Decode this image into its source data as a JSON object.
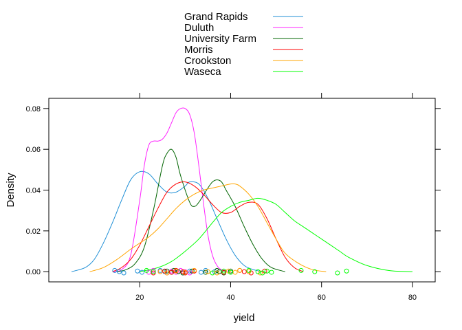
{
  "chart_data": {
    "type": "line",
    "title": "",
    "xlabel": "yield",
    "ylabel": "Density",
    "xlim": [
      0,
      85
    ],
    "ylim": [
      -0.005,
      0.085
    ],
    "x_ticks": [
      20,
      40,
      60,
      80
    ],
    "y_ticks": [
      0.0,
      0.02,
      0.04,
      0.06,
      0.08
    ],
    "x_tick_labels": [
      "20",
      "40",
      "60",
      "80"
    ],
    "y_tick_labels": [
      "0.00",
      "0.02",
      "0.04",
      "0.06",
      "0.08"
    ],
    "grid": false,
    "legend_placement": "top-center",
    "series": [
      {
        "name": "Grand Rapids",
        "color": "#1f8fd6",
        "density": [
          [
            5,
            0.0
          ],
          [
            8,
            0.002
          ],
          [
            10,
            0.006
          ],
          [
            12,
            0.014
          ],
          [
            14,
            0.024
          ],
          [
            16,
            0.035
          ],
          [
            18,
            0.045
          ],
          [
            20,
            0.049
          ],
          [
            22,
            0.048
          ],
          [
            24,
            0.043
          ],
          [
            26,
            0.039
          ],
          [
            28,
            0.039
          ],
          [
            30,
            0.042
          ],
          [
            31,
            0.044
          ],
          [
            33,
            0.043
          ],
          [
            35,
            0.036
          ],
          [
            37,
            0.026
          ],
          [
            39,
            0.016
          ],
          [
            41,
            0.008
          ],
          [
            43,
            0.003
          ],
          [
            45,
            0.001
          ],
          [
            47,
            0.0
          ]
        ],
        "rug": [
          14.5,
          15.5,
          16.5,
          19.5,
          20.5,
          24.5,
          25.5,
          29.5,
          31,
          33.5,
          34.5,
          36.5
        ]
      },
      {
        "name": "Duluth",
        "color": "#ff21ff",
        "density": [
          [
            14,
            0.0
          ],
          [
            16,
            0.001
          ],
          [
            18,
            0.008
          ],
          [
            20,
            0.035
          ],
          [
            21,
            0.052
          ],
          [
            22,
            0.062
          ],
          [
            23,
            0.064
          ],
          [
            24,
            0.064
          ],
          [
            25,
            0.065
          ],
          [
            26,
            0.068
          ],
          [
            27,
            0.073
          ],
          [
            28,
            0.078
          ],
          [
            29,
            0.08
          ],
          [
            30,
            0.08
          ],
          [
            31,
            0.077
          ],
          [
            32,
            0.068
          ],
          [
            33,
            0.052
          ],
          [
            34,
            0.034
          ],
          [
            35,
            0.018
          ],
          [
            36,
            0.008
          ],
          [
            37,
            0.003
          ],
          [
            38,
            0.001
          ],
          [
            40,
            0.0
          ]
        ],
        "rug": [
          22,
          23,
          24.5,
          26,
          27,
          28,
          29,
          30,
          31,
          32
        ]
      },
      {
        "name": "University Farm",
        "color": "#006400",
        "density": [
          [
            15,
            0.0
          ],
          [
            17,
            0.001
          ],
          [
            19,
            0.004
          ],
          [
            21,
            0.012
          ],
          [
            23,
            0.03
          ],
          [
            25,
            0.052
          ],
          [
            26,
            0.058
          ],
          [
            27,
            0.06
          ],
          [
            28,
            0.056
          ],
          [
            29,
            0.047
          ],
          [
            31,
            0.034
          ],
          [
            32,
            0.032
          ],
          [
            33,
            0.034
          ],
          [
            35,
            0.041
          ],
          [
            36,
            0.044
          ],
          [
            37,
            0.045
          ],
          [
            38,
            0.044
          ],
          [
            39,
            0.04
          ],
          [
            41,
            0.032
          ],
          [
            43,
            0.022
          ],
          [
            45,
            0.013
          ],
          [
            47,
            0.006
          ],
          [
            49,
            0.002
          ],
          [
            52,
            0.0
          ]
        ],
        "rug": [
          26,
          27,
          27.5,
          28.5,
          29.5,
          31.5,
          34.5,
          37,
          37.5,
          38.5,
          40
        ]
      },
      {
        "name": "Morris",
        "color": "#ff0000",
        "density": [
          [
            14,
            0.0
          ],
          [
            16,
            0.002
          ],
          [
            18,
            0.006
          ],
          [
            20,
            0.013
          ],
          [
            22,
            0.022
          ],
          [
            24,
            0.031
          ],
          [
            26,
            0.039
          ],
          [
            28,
            0.043
          ],
          [
            30,
            0.044
          ],
          [
            32,
            0.042
          ],
          [
            34,
            0.038
          ],
          [
            36,
            0.033
          ],
          [
            38,
            0.029
          ],
          [
            40,
            0.029
          ],
          [
            42,
            0.032
          ],
          [
            44,
            0.034
          ],
          [
            46,
            0.033
          ],
          [
            48,
            0.026
          ],
          [
            50,
            0.016
          ],
          [
            52,
            0.007
          ],
          [
            54,
            0.002
          ],
          [
            56,
            0.0
          ]
        ],
        "rug": [
          23,
          25.5,
          27,
          28,
          29.5,
          30,
          32,
          38.5,
          42,
          43,
          44.5,
          47.5
        ]
      },
      {
        "name": "Crookston",
        "color": "#ffa500",
        "density": [
          [
            9,
            0.0
          ],
          [
            12,
            0.002
          ],
          [
            15,
            0.006
          ],
          [
            18,
            0.011
          ],
          [
            20,
            0.014
          ],
          [
            22,
            0.017
          ],
          [
            24,
            0.021
          ],
          [
            26,
            0.026
          ],
          [
            28,
            0.031
          ],
          [
            30,
            0.035
          ],
          [
            32,
            0.038
          ],
          [
            34,
            0.04
          ],
          [
            36,
            0.041
          ],
          [
            38,
            0.042
          ],
          [
            40,
            0.043
          ],
          [
            41,
            0.043
          ],
          [
            42,
            0.042
          ],
          [
            44,
            0.038
          ],
          [
            46,
            0.032
          ],
          [
            48,
            0.024
          ],
          [
            50,
            0.016
          ],
          [
            52,
            0.009
          ],
          [
            55,
            0.004
          ],
          [
            58,
            0.001
          ],
          [
            61,
            0.0
          ]
        ],
        "rug": [
          24.5,
          26,
          28,
          30,
          32,
          35,
          37,
          39.5,
          41,
          42,
          44,
          46.5
        ]
      },
      {
        "name": "Waseca",
        "color": "#00ff00",
        "density": [
          [
            20,
            0.0
          ],
          [
            24,
            0.002
          ],
          [
            27,
            0.005
          ],
          [
            30,
            0.01
          ],
          [
            33,
            0.016
          ],
          [
            36,
            0.024
          ],
          [
            38,
            0.029
          ],
          [
            40,
            0.032
          ],
          [
            42,
            0.034
          ],
          [
            44,
            0.035
          ],
          [
            46,
            0.036
          ],
          [
            48,
            0.035
          ],
          [
            50,
            0.033
          ],
          [
            52,
            0.029
          ],
          [
            54,
            0.025
          ],
          [
            56,
            0.022
          ],
          [
            58,
            0.019
          ],
          [
            60,
            0.016
          ],
          [
            62,
            0.013
          ],
          [
            64,
            0.01
          ],
          [
            66,
            0.007
          ],
          [
            70,
            0.003
          ],
          [
            75,
            0.0005
          ],
          [
            80,
            0.0
          ]
        ],
        "rug": [
          21.5,
          23,
          36,
          38.5,
          40,
          44,
          46,
          47,
          48,
          49,
          55.5,
          58.5,
          63.5,
          65.5
        ]
      }
    ]
  }
}
